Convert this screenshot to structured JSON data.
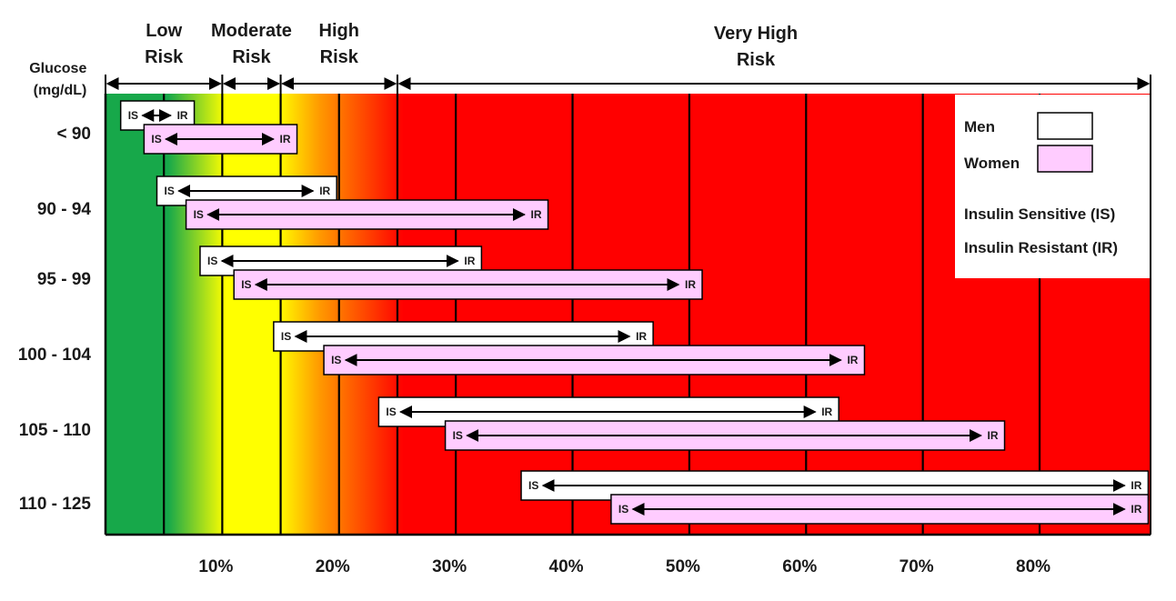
{
  "chart_data": {
    "type": "range_bar",
    "ylabel": "Glucose\n(mg/dL)",
    "x_ticks": [
      "10%",
      "20%",
      "30%",
      "40%",
      "50%",
      "60%",
      "70%",
      "80%"
    ],
    "x_tick_values": [
      10,
      20,
      30,
      40,
      50,
      60,
      70,
      80
    ],
    "xlim": [
      0,
      89.5
    ],
    "categories": [
      "< 90",
      "90 - 94",
      "95 - 99",
      "100 - 104",
      "105 - 110",
      "110 - 125"
    ],
    "series": [
      {
        "name": "Men",
        "color": "#ffffff",
        "ranges": [
          [
            1.3,
            7.6
          ],
          [
            4.4,
            19.8
          ],
          [
            8.1,
            32.2
          ],
          [
            14.4,
            46.9
          ],
          [
            23.4,
            62.8
          ],
          [
            35.6,
            89.3
          ]
        ]
      },
      {
        "name": "Women",
        "color": "#ffccff",
        "ranges": [
          [
            3.3,
            16.4
          ],
          [
            6.9,
            37.9
          ],
          [
            11.0,
            51.1
          ],
          [
            18.7,
            65.0
          ],
          [
            29.1,
            77.0
          ],
          [
            43.3,
            89.3
          ]
        ]
      }
    ],
    "bar_start_label": "IS",
    "bar_end_label": "IR",
    "risk_zones": [
      {
        "label": [
          "Low",
          "Risk"
        ],
        "from": 0,
        "to": 10
      },
      {
        "label": [
          "Moderate",
          "Risk"
        ],
        "from": 10,
        "to": 15
      },
      {
        "label": [
          "High",
          "Risk"
        ],
        "from": 15,
        "to": 25
      },
      {
        "label": [
          "Very High",
          "Risk"
        ],
        "from": 25,
        "to": 89.5
      }
    ],
    "legend": {
      "position": "top-right",
      "items": [
        {
          "label": "Men",
          "color": "#ffffff"
        },
        {
          "label": "Women",
          "color": "#ffccff"
        }
      ],
      "notes": [
        "Insulin Sensitive (IS)",
        "Insulin Resistant (IR)"
      ]
    },
    "colors": {
      "green": "#17a84a",
      "yellow": "#ffff00",
      "orange": "#ff9900",
      "red": "#ff0000",
      "men_fill": "#ffffff",
      "women_fill": "#ffccff"
    }
  }
}
